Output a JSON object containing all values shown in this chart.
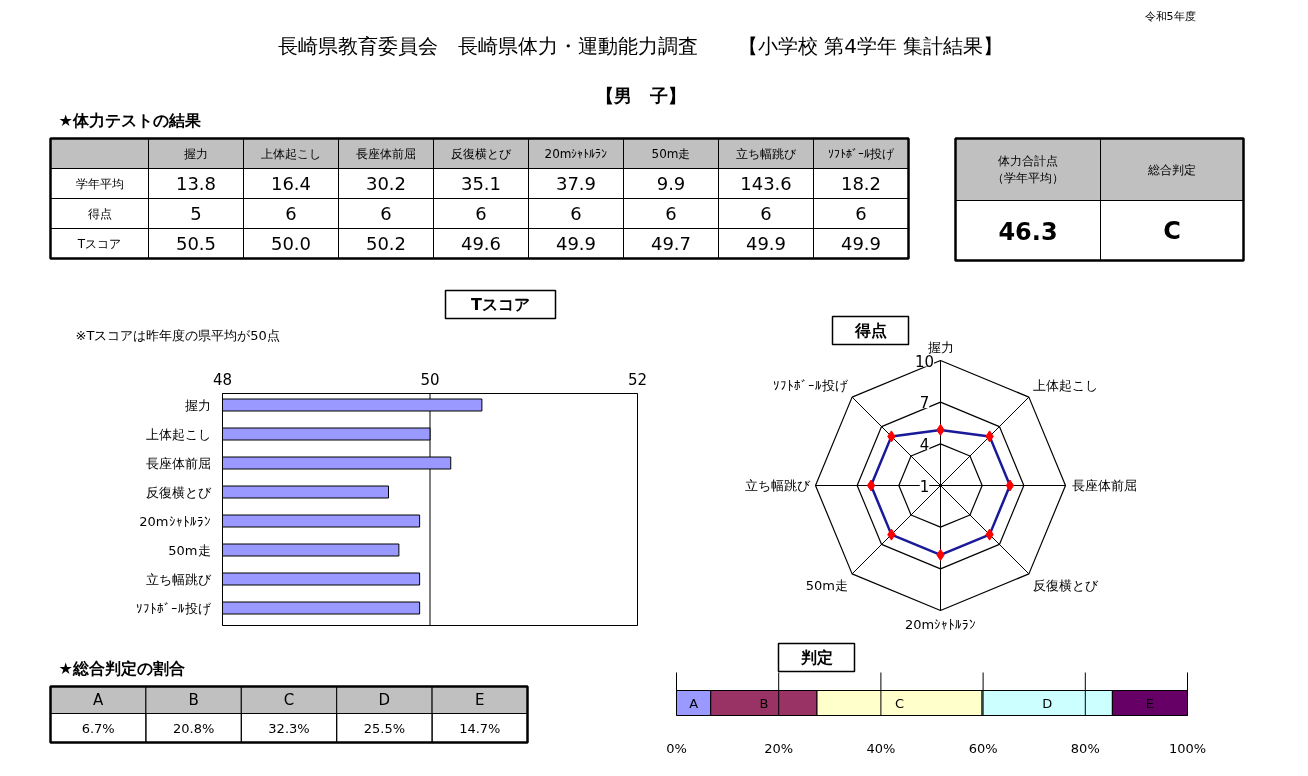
{
  "chart_data": [
    {
      "type": "other",
      "title": "長崎県教育委員会　長崎県体力・運動能力調査　　【小学校 第4学年 集計結果】",
      "subtitle": "【男　子】",
      "annotations": [
        "令和5年度",
        "★体力テストの結果"
      ],
      "categories": [
        "握力",
        "上体起こし",
        "長座体前屈",
        "反復横とび",
        "20mｼｬﾄﾙﾗﾝ",
        "50m走",
        "立ち幅跳び",
        "ｿﾌﾄﾎﾞｰﾙ投げ"
      ],
      "series": [
        {
          "name": "学年平均",
          "values": [
            13.8,
            16.4,
            30.2,
            35.1,
            37.9,
            9.9,
            143.6,
            18.2
          ],
          "value_labels": [
            "13.8",
            "16.4",
            "30.2",
            "35.1",
            "37.9",
            "9.9",
            "143.6",
            "18.2"
          ]
        },
        {
          "name": "得点",
          "values": [
            5,
            6,
            6,
            6,
            6,
            6,
            6,
            6
          ],
          "value_labels": [
            "5",
            "6",
            "6",
            "6",
            "6",
            "6",
            "6",
            "6"
          ]
        },
        {
          "name": "Tスコア",
          "values": [
            50.5,
            50.0,
            50.2,
            49.6,
            49.9,
            49.7,
            49.9,
            49.9
          ],
          "value_labels": [
            "50.5",
            "50.0",
            "50.2",
            "49.6",
            "49.9",
            "49.7",
            "49.9",
            "49.9"
          ]
        }
      ]
    },
    {
      "type": "other",
      "annotations": [
        "体力合計点（学年平均）",
        "総合判定",
        "46.3",
        "C"
      ]
    },
    {
      "type": "bar",
      "title": "Tスコア",
      "annotations": [
        "※Tスコアは昨年度の県平均が50点"
      ],
      "orientation": "horizontal",
      "categories": [
        "握力",
        "上体起こし",
        "長座体前屈",
        "反復横とび",
        "20mｼｬﾄﾙﾗﾝ",
        "50m走",
        "立ち幅跳び",
        "ｿﾌﾄﾎﾞｰﾙ投げ"
      ],
      "values": [
        50.5,
        50.0,
        50.2,
        49.6,
        49.9,
        49.7,
        49.9,
        49.9
      ],
      "color": "#9999ff",
      "xlim": [
        48,
        52
      ],
      "xticks": [
        48,
        50,
        52
      ],
      "grid": "x"
    },
    {
      "type": "radar",
      "title": "得点",
      "categories": [
        "握力",
        "上体起こし",
        "長座体前屈",
        "反復横とび",
        "20mｼｬﾄﾙﾗﾝ",
        "50m走",
        "立ち幅跳び",
        "ｿﾌﾄﾎﾞｰﾙ投げ"
      ],
      "series": [
        {
          "color": "#1a1a99",
          "colors": [
            "#ff0000",
            "#ff0000",
            "#ff0000",
            "#ff0000",
            "#ff0000",
            "#ff0000",
            "#ff0000",
            "#ff0000"
          ],
          "values": [
            5,
            6,
            6,
            6,
            6,
            6,
            6,
            6
          ]
        }
      ],
      "ylim": [
        1,
        10
      ],
      "yticks": [
        1,
        4,
        7,
        10
      ],
      "grid": true,
      "marker": "diamond"
    },
    {
      "type": "bar",
      "title": "判定",
      "orientation": "horizontal",
      "stacked": true,
      "categories": [
        null
      ],
      "series": [
        {
          "name": "A",
          "color": "#9999ff",
          "values": [
            6.7
          ]
        },
        {
          "name": "B",
          "color": "#993366",
          "values": [
            20.8
          ]
        },
        {
          "name": "C",
          "color": "#ffffcc",
          "values": [
            32.3
          ]
        },
        {
          "name": "D",
          "color": "#ccffff",
          "values": [
            25.5
          ]
        },
        {
          "name": "E",
          "color": "#660066",
          "values": [
            14.7
          ]
        }
      ],
      "xlim": [
        0,
        100
      ],
      "xticks": [
        {
          "value": 0,
          "label": "0%"
        },
        {
          "value": 20,
          "label": "20%"
        },
        {
          "value": 40,
          "label": "40%"
        },
        {
          "value": 60,
          "label": "60%"
        },
        {
          "value": 80,
          "label": "80%"
        },
        {
          "value": 100,
          "label": "100%"
        }
      ],
      "grid": "x"
    },
    {
      "type": "other",
      "title": "★総合判定の割合",
      "categories": [
        "A",
        "B",
        "C",
        "D",
        "E"
      ],
      "annotations": [
        "6.7%",
        "20.8%",
        "32.3%",
        "25.5%",
        "14.7%"
      ]
    }
  ]
}
